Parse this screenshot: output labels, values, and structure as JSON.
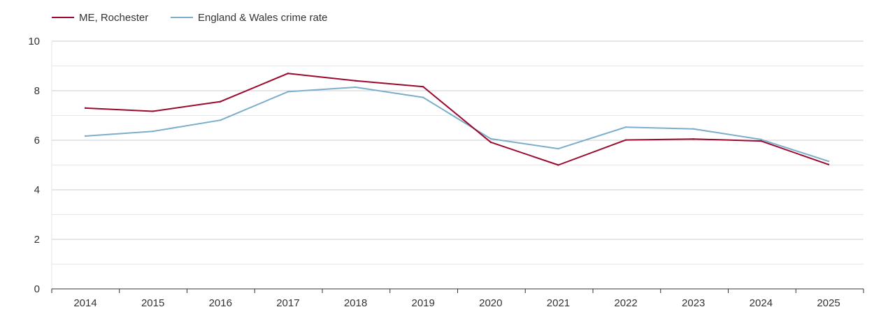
{
  "chart_data": {
    "type": "line",
    "title": "",
    "xlabel": "",
    "ylabel": "",
    "categories": [
      "2014",
      "2015",
      "2016",
      "2017",
      "2018",
      "2019",
      "2020",
      "2021",
      "2022",
      "2023",
      "2024",
      "2025"
    ],
    "ylim": [
      0,
      10
    ],
    "yticks": [
      0,
      2,
      4,
      6,
      8,
      10
    ],
    "grid": true,
    "legend_position": "top-left",
    "series": [
      {
        "name": "ME, Rochester",
        "color": "#9b0a2e",
        "values": [
          7.3,
          7.17,
          7.56,
          8.7,
          8.4,
          8.16,
          5.92,
          5.0,
          6.01,
          6.05,
          5.97,
          5.02
        ]
      },
      {
        "name": "England & Wales crime rate",
        "color": "#7aaecb",
        "values": [
          6.17,
          6.36,
          6.81,
          7.96,
          8.14,
          7.73,
          6.06,
          5.66,
          6.53,
          6.46,
          6.03,
          5.15
        ]
      }
    ]
  }
}
